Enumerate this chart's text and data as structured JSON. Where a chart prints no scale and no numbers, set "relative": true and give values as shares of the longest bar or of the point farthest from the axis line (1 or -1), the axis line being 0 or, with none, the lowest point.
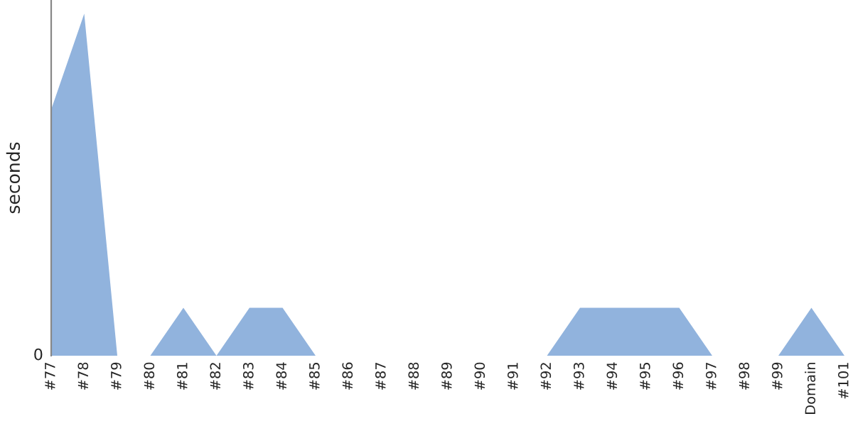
{
  "chart_data": {
    "type": "area",
    "ylabel": "seconds",
    "relative": true,
    "annotations": [
      "0"
    ],
    "categories": [
      "#77",
      "#78",
      "#79",
      "#80",
      "#81",
      "#82",
      "#83",
      "#84",
      "#85",
      "#86",
      "#87",
      "#88",
      "#89",
      "#90",
      "#91",
      "#92",
      "#93",
      "#94",
      "#95",
      "#96",
      "#97",
      "#98",
      "#99",
      "Domain",
      "#101"
    ],
    "series": [
      {
        "color": "#91b3dd",
        "values": [
          0.72,
          1,
          0,
          0,
          0.14,
          0,
          0.14,
          0.14,
          0,
          0,
          0,
          0,
          0,
          0,
          0,
          0,
          0.14,
          0.14,
          0.14,
          0.14,
          0,
          0,
          0,
          0.14,
          0
        ]
      }
    ],
    "legend": false
  }
}
